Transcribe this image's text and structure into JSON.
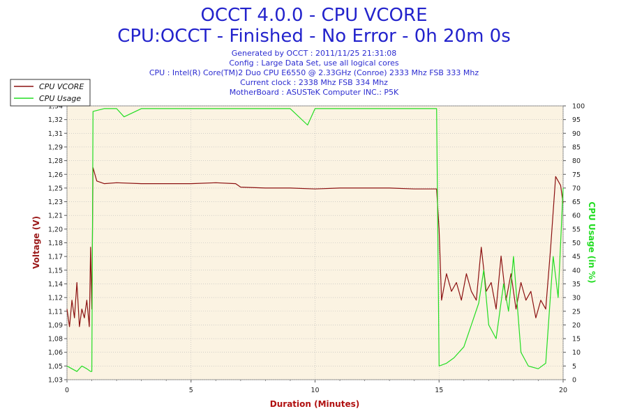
{
  "chart_data": {
    "type": "line",
    "title": "OCCT 4.0.0 - CPU VCORE",
    "subtitle": "CPU:OCCT - Finished - No Error - 0h 20m 0s",
    "info_lines": [
      "Generated by OCCT : 2011/11/25 21:31:08",
      "Config : Large Data Set, use all logical cores",
      "CPU : Intel(R) Core(TM)2 Duo CPU E6550 @ 2.33GHz (Conroe) 2333 Mhz FSB 333 Mhz",
      "Current clock : 2338 Mhz FSB 334 Mhz",
      "MotherBoard : ASUSTeK Computer INC.: P5K"
    ],
    "xlabel": "Duration (Minutes)",
    "ylabel_left": "Voltage (V)",
    "ylabel_right": "CPU Usage (in %)",
    "xlim": [
      0,
      20
    ],
    "xticks": [
      "0",
      "5",
      "10",
      "15",
      "20"
    ],
    "ylim_left": [
      1.03,
      1.34
    ],
    "yticks_left": [
      "1,03",
      "1,05",
      "1,06",
      "1,08",
      "1,09",
      "1,11",
      "1,12",
      "1,14",
      "1,15",
      "1,17",
      "1,18",
      "1,20",
      "1,21",
      "1,23",
      "1,25",
      "1,26",
      "1,28",
      "1,29",
      "1,31",
      "1,32",
      "1,34"
    ],
    "ylim_right": [
      0,
      100
    ],
    "yticks_right": [
      "0",
      "5",
      "10",
      "15",
      "20",
      "25",
      "30",
      "35",
      "40",
      "45",
      "50",
      "55",
      "60",
      "65",
      "70",
      "75",
      "80",
      "85",
      "90",
      "95",
      "100"
    ],
    "legend_position": "top-left",
    "series": [
      {
        "name": "CPU VCORE",
        "axis": "left",
        "color": "#8b1010",
        "points": [
          [
            0.0,
            1.11
          ],
          [
            0.1,
            1.09
          ],
          [
            0.2,
            1.12
          ],
          [
            0.3,
            1.1
          ],
          [
            0.4,
            1.14
          ],
          [
            0.5,
            1.09
          ],
          [
            0.6,
            1.11
          ],
          [
            0.7,
            1.1
          ],
          [
            0.8,
            1.12
          ],
          [
            0.9,
            1.09
          ],
          [
            0.95,
            1.18
          ],
          [
            1.0,
            1.11
          ],
          [
            1.05,
            1.27
          ],
          [
            1.2,
            1.255
          ],
          [
            1.5,
            1.252
          ],
          [
            2.0,
            1.253
          ],
          [
            3.0,
            1.252
          ],
          [
            4.0,
            1.252
          ],
          [
            5.0,
            1.252
          ],
          [
            6.0,
            1.253
          ],
          [
            6.8,
            1.252
          ],
          [
            7.0,
            1.248
          ],
          [
            8.0,
            1.247
          ],
          [
            9.0,
            1.247
          ],
          [
            10.0,
            1.246
          ],
          [
            11.0,
            1.247
          ],
          [
            12.0,
            1.247
          ],
          [
            13.0,
            1.247
          ],
          [
            14.0,
            1.246
          ],
          [
            14.9,
            1.246
          ],
          [
            15.0,
            1.2
          ],
          [
            15.1,
            1.12
          ],
          [
            15.3,
            1.15
          ],
          [
            15.5,
            1.13
          ],
          [
            15.7,
            1.14
          ],
          [
            15.9,
            1.12
          ],
          [
            16.1,
            1.15
          ],
          [
            16.3,
            1.13
          ],
          [
            16.5,
            1.12
          ],
          [
            16.7,
            1.18
          ],
          [
            16.9,
            1.13
          ],
          [
            17.1,
            1.14
          ],
          [
            17.3,
            1.11
          ],
          [
            17.5,
            1.17
          ],
          [
            17.7,
            1.12
          ],
          [
            17.9,
            1.15
          ],
          [
            18.1,
            1.11
          ],
          [
            18.3,
            1.14
          ],
          [
            18.5,
            1.12
          ],
          [
            18.7,
            1.13
          ],
          [
            18.9,
            1.1
          ],
          [
            19.1,
            1.12
          ],
          [
            19.3,
            1.11
          ],
          [
            19.5,
            1.18
          ],
          [
            19.7,
            1.26
          ],
          [
            19.9,
            1.25
          ],
          [
            20.0,
            1.23
          ]
        ]
      },
      {
        "name": "CPU Usage",
        "axis": "right",
        "color": "#22dd22",
        "points": [
          [
            0.0,
            5
          ],
          [
            0.2,
            4
          ],
          [
            0.4,
            3
          ],
          [
            0.6,
            5
          ],
          [
            0.8,
            4
          ],
          [
            0.95,
            3
          ],
          [
            1.0,
            3
          ],
          [
            1.05,
            98
          ],
          [
            1.5,
            99
          ],
          [
            2.0,
            99
          ],
          [
            2.3,
            96
          ],
          [
            3.0,
            99
          ],
          [
            4.0,
            99
          ],
          [
            5.0,
            99
          ],
          [
            6.0,
            99
          ],
          [
            7.0,
            99
          ],
          [
            8.0,
            99
          ],
          [
            9.0,
            99
          ],
          [
            9.7,
            93
          ],
          [
            10.0,
            99
          ],
          [
            11.0,
            99
          ],
          [
            12.0,
            99
          ],
          [
            13.0,
            99
          ],
          [
            14.0,
            99
          ],
          [
            14.9,
            99
          ],
          [
            15.0,
            5
          ],
          [
            15.3,
            6
          ],
          [
            15.6,
            8
          ],
          [
            16.0,
            12
          ],
          [
            16.3,
            20
          ],
          [
            16.6,
            28
          ],
          [
            16.8,
            40
          ],
          [
            17.0,
            20
          ],
          [
            17.3,
            15
          ],
          [
            17.6,
            35
          ],
          [
            17.8,
            25
          ],
          [
            18.0,
            45
          ],
          [
            18.3,
            10
          ],
          [
            18.6,
            5
          ],
          [
            19.0,
            4
          ],
          [
            19.3,
            6
          ],
          [
            19.6,
            45
          ],
          [
            19.8,
            30
          ],
          [
            20.0,
            70
          ]
        ]
      }
    ]
  }
}
